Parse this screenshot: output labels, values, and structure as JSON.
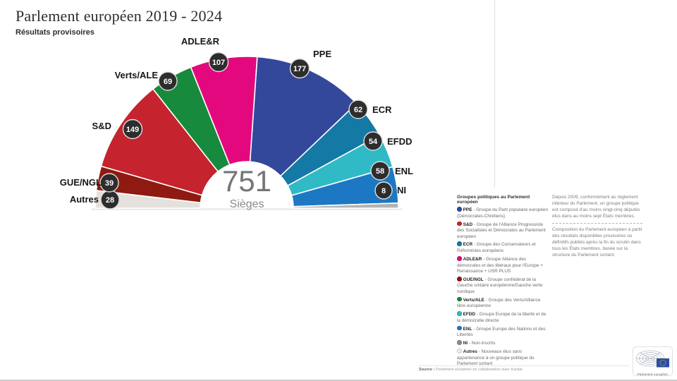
{
  "page": {
    "title": "Parlement européen 2019 - 2024",
    "subtitle": "Résultats provisoires"
  },
  "chart_data": {
    "type": "pie",
    "subtype": "hemicycle-half-donut",
    "title": "Parlement européen 2019 - 2024",
    "subtitle": "Résultats provisoires",
    "center_value": "751",
    "center_label": "Sièges",
    "total_seats": 751,
    "order": "left-to-right",
    "groups": [
      {
        "id": "autres",
        "label": "Autres",
        "seats": 28,
        "color": "#e4e1dd"
      },
      {
        "id": "gue",
        "label": "GUE/NGL",
        "seats": 39,
        "color": "#8e1a12"
      },
      {
        "id": "sd",
        "label": "S&D",
        "seats": 149,
        "color": "#c5232d"
      },
      {
        "id": "verts",
        "label": "Verts/ALE",
        "seats": 69,
        "color": "#178a3d"
      },
      {
        "id": "adle",
        "label": "ADLE&R",
        "seats": 107,
        "color": "#e4087e"
      },
      {
        "id": "ppe",
        "label": "PPE",
        "seats": 177,
        "color": "#33489b"
      },
      {
        "id": "ecr",
        "label": "ECR",
        "seats": 62,
        "color": "#1579a6"
      },
      {
        "id": "efdd",
        "label": "EFDD",
        "seats": 54,
        "color": "#30bac5"
      },
      {
        "id": "enl",
        "label": "ENL",
        "seats": 58,
        "color": "#1d78c4"
      },
      {
        "id": "ni",
        "label": "NI",
        "seats": 8,
        "color": "#b3b3b3"
      }
    ]
  },
  "legend": {
    "heading": "Groupes politiques au Parlement européen",
    "items": [
      {
        "abbr": "PPE",
        "color": "#33489b",
        "desc": "Groupe du Parti populaire européen (Démocrates-Chrétiens)"
      },
      {
        "abbr": "S&D",
        "color": "#c5232d",
        "desc": "Groupe de l'Alliance Progressiste des Socialistes et Démocrates au Parlement européen"
      },
      {
        "abbr": "ECR",
        "color": "#1579a6",
        "desc": "Groupe des Conservateurs et Réformistes européens"
      },
      {
        "abbr": "ADLE&R",
        "color": "#e4087e",
        "desc": "Groupe Alliance des démocrates et des libéraux pour l'Europe + Renaissance + USR PLUS"
      },
      {
        "abbr": "GUE/NGL",
        "color": "#8e1a12",
        "desc": "Groupe confédéral de la Gauche unitaire européenne/Gauche verte nordique"
      },
      {
        "abbr": "Verts/ALE",
        "color": "#178a3d",
        "desc": "Groupe des Verts/Alliance libre européenne"
      },
      {
        "abbr": "EFDD",
        "color": "#30bac5",
        "desc": "Groupe Europe de la liberté et de la démocratie directe"
      },
      {
        "abbr": "ENL",
        "color": "#1d78c4",
        "desc": "Groupe Europe des Nations et des Libertés"
      },
      {
        "abbr": "NI",
        "color": "#8c8c8c",
        "desc": "Non-inscrits"
      },
      {
        "abbr": "Autres",
        "color": "#f1efec",
        "desc": "Nouveaux élus sans appartenance à un groupe politique du Parlement sortant"
      }
    ]
  },
  "notes": {
    "para1": "Depuis 2009, conformément au règlement intérieur du Parlement, un groupe politique est composé d'au moins vingt-cinq députés élus dans au moins sept États membres.",
    "para2": "Composition du Parlement européen à partir des résultats disponibles provisoires ou définitifs publiés après la fin du scrutin dans tous les États membres, basée sur la structure du Parlement sortant."
  },
  "footer": {
    "source_label": "Source :",
    "source_text": "Parlement européen en collaboration avec Kantar"
  },
  "logo": {
    "caption": "Parlement européen"
  }
}
